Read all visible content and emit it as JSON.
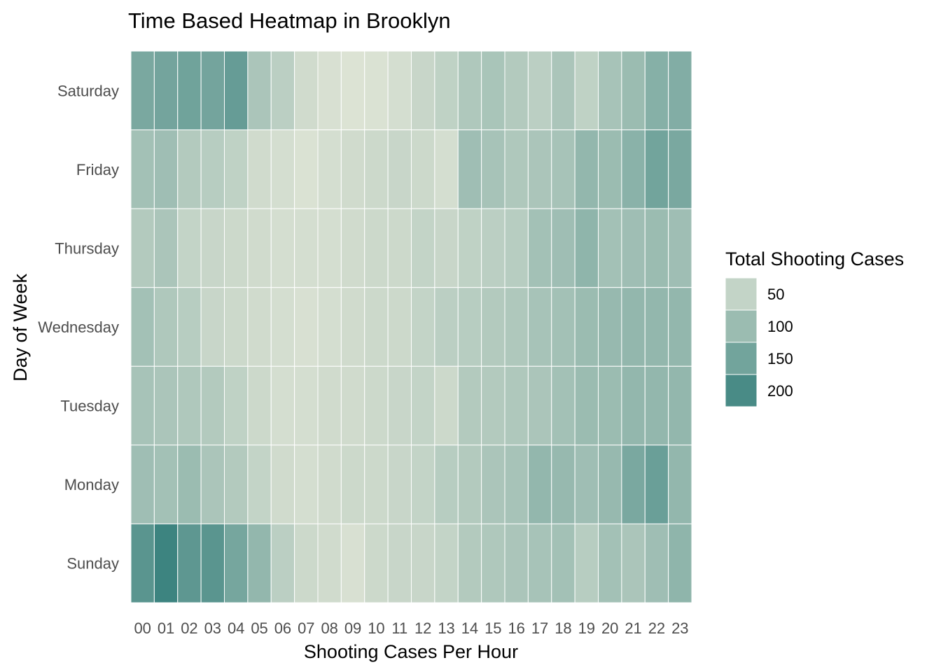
{
  "chart_data": {
    "type": "heatmap",
    "title": "Time Based Heatmap in Brooklyn",
    "xlabel": "Shooting Cases Per Hour",
    "ylabel": "Day of Week",
    "x_categories": [
      "00",
      "01",
      "02",
      "03",
      "04",
      "05",
      "06",
      "07",
      "08",
      "09",
      "10",
      "11",
      "12",
      "13",
      "14",
      "15",
      "16",
      "17",
      "18",
      "19",
      "20",
      "21",
      "22",
      "23"
    ],
    "y_categories_top_to_bottom": [
      "Saturday",
      "Friday",
      "Thursday",
      "Wednesday",
      "Tuesday",
      "Monday",
      "Sunday"
    ],
    "values": {
      "Saturday": [
        140,
        148,
        152,
        148,
        165,
        80,
        60,
        35,
        25,
        20,
        22,
        30,
        45,
        55,
        75,
        82,
        70,
        60,
        80,
        55,
        85,
        100,
        125,
        130
      ],
      "Friday": [
        90,
        95,
        70,
        65,
        55,
        35,
        30,
        22,
        30,
        35,
        40,
        45,
        40,
        30,
        95,
        85,
        75,
        80,
        85,
        110,
        100,
        120,
        150,
        140
      ],
      "Thursday": [
        70,
        80,
        50,
        45,
        40,
        35,
        30,
        30,
        30,
        35,
        40,
        40,
        50,
        45,
        55,
        60,
        65,
        90,
        95,
        115,
        90,
        95,
        100,
        95
      ],
      "Wednesday": [
        90,
        75,
        65,
        45,
        40,
        35,
        30,
        25,
        30,
        35,
        40,
        40,
        50,
        60,
        65,
        70,
        75,
        85,
        90,
        100,
        105,
        110,
        110,
        110
      ],
      "Tuesday": [
        85,
        80,
        75,
        70,
        55,
        40,
        30,
        30,
        35,
        35,
        40,
        45,
        50,
        40,
        70,
        70,
        75,
        80,
        90,
        100,
        100,
        110,
        110,
        110
      ],
      "Monday": [
        95,
        90,
        100,
        80,
        70,
        50,
        35,
        30,
        35,
        40,
        40,
        45,
        50,
        65,
        70,
        80,
        85,
        110,
        105,
        95,
        105,
        140,
        160,
        110
      ],
      "Sunday": [
        180,
        215,
        175,
        180,
        145,
        110,
        60,
        40,
        35,
        25,
        40,
        45,
        45,
        50,
        70,
        75,
        80,
        85,
        90,
        65,
        90,
        80,
        95,
        115
      ]
    },
    "legend": {
      "title": "Total Shooting Cases",
      "labels": [
        "50",
        "100",
        "150",
        "200"
      ],
      "breaks": [
        50,
        100,
        150,
        200
      ],
      "low_color": "#e0e5d6",
      "high_color": "#3d8480",
      "placement": "right"
    },
    "grid": false
  }
}
